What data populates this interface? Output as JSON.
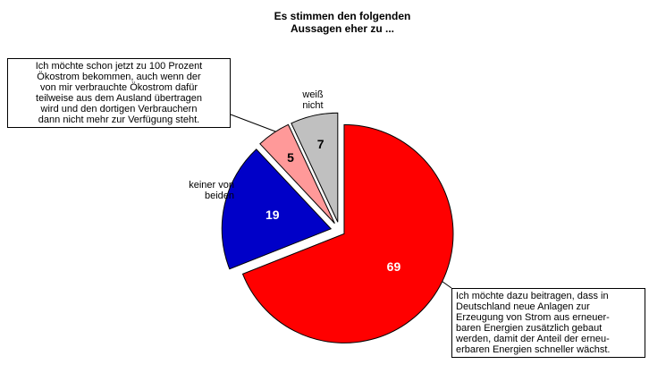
{
  "chart_data": {
    "type": "pie",
    "title": "Es stimmen den folgenden\nAussagen eher zu ...",
    "categories": [
      "Ich möchte dazu beitragen, dass in\nDeutschland neue Anlagen zur\nErzeugung von Strom aus erneuer-\nbaren Energien zusätzlich gebaut\nwerden, damit der Anteil der erneu-\nerbaren Energien schneller wächst.",
      "keiner von\nbeiden",
      "Ich möchte schon jetzt zu 100 Prozent\nÖkostrom bekommen, auch wenn der\nvon mir verbrauchte Ökostrom dafür\nteilweise aus dem Ausland übertragen\nwird und den dortigen Verbrauchern\ndann nicht mehr zur Verfügung steht.",
      "weiß\nnicht"
    ],
    "values": [
      69,
      19,
      5,
      7
    ],
    "colors": [
      "#ff0000",
      "#0000c8",
      "#ff9999",
      "#c0c0c0"
    ]
  }
}
